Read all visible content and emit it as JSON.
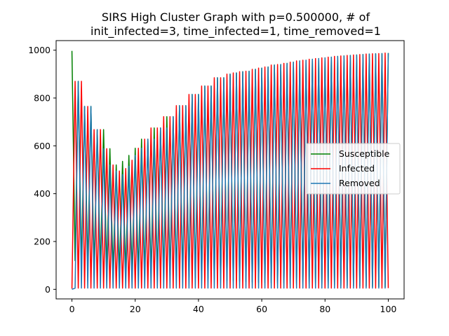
{
  "chart_data": {
    "type": "line",
    "title_line1": "SIRS High Cluster Graph with p=0.500000, # of",
    "title_line2": "init_infected=3, time_infected=1, time_removed=1",
    "xlabel": "",
    "ylabel": "",
    "xlim": [
      -5,
      105
    ],
    "ylim": [
      -40,
      1040
    ],
    "xticks": [
      0,
      20,
      40,
      60,
      80,
      100
    ],
    "yticks": [
      0,
      200,
      400,
      600,
      800,
      1000
    ],
    "grid": false,
    "legend_position": "center-right",
    "series": [
      {
        "name": "Susceptible",
        "color": "#008000",
        "peaks": [
          [
            0,
            997
          ],
          [
            2,
            870
          ],
          [
            4,
            765
          ],
          [
            6,
            765
          ],
          [
            8,
            668
          ],
          [
            10,
            668
          ],
          [
            12,
            588
          ],
          [
            14,
            520
          ],
          [
            16,
            535
          ],
          [
            18,
            560
          ],
          [
            20,
            590
          ],
          [
            22,
            628
          ],
          [
            24,
            628
          ],
          [
            26,
            675
          ],
          [
            28,
            675
          ],
          [
            30,
            722
          ],
          [
            32,
            722
          ],
          [
            34,
            768
          ],
          [
            36,
            768
          ],
          [
            38,
            815
          ],
          [
            40,
            815
          ],
          [
            42,
            850
          ],
          [
            44,
            850
          ],
          [
            46,
            885
          ],
          [
            48,
            885
          ],
          [
            50,
            900
          ],
          [
            52,
            905
          ],
          [
            54,
            910
          ],
          [
            56,
            912
          ],
          [
            58,
            920
          ],
          [
            60,
            925
          ],
          [
            62,
            930
          ],
          [
            64,
            938
          ],
          [
            66,
            940
          ],
          [
            68,
            945
          ],
          [
            70,
            950
          ],
          [
            72,
            955
          ],
          [
            74,
            958
          ],
          [
            76,
            962
          ],
          [
            78,
            965
          ],
          [
            80,
            968
          ],
          [
            82,
            971
          ],
          [
            84,
            974
          ],
          [
            86,
            976
          ],
          [
            88,
            978
          ],
          [
            90,
            980
          ],
          [
            92,
            982
          ],
          [
            94,
            984
          ],
          [
            96,
            985
          ],
          [
            98,
            986
          ],
          [
            100,
            988
          ]
        ],
        "troughs": [
          [
            1,
            120
          ],
          [
            3,
            95
          ],
          [
            5,
            90
          ],
          [
            7,
            85
          ],
          [
            9,
            80
          ],
          [
            11,
            78
          ],
          [
            13,
            75
          ],
          [
            15,
            72
          ],
          [
            17,
            70
          ],
          [
            19,
            68
          ],
          [
            21,
            66
          ],
          [
            23,
            64
          ],
          [
            25,
            62
          ],
          [
            27,
            60
          ],
          [
            29,
            58
          ],
          [
            31,
            56
          ],
          [
            33,
            54
          ],
          [
            35,
            52
          ],
          [
            37,
            50
          ],
          [
            39,
            48
          ],
          [
            41,
            46
          ],
          [
            43,
            44
          ],
          [
            45,
            42
          ],
          [
            47,
            40
          ],
          [
            49,
            38
          ],
          [
            51,
            36
          ],
          [
            53,
            34
          ],
          [
            55,
            32
          ],
          [
            57,
            30
          ],
          [
            59,
            29
          ],
          [
            61,
            28
          ],
          [
            63,
            27
          ],
          [
            65,
            26
          ],
          [
            67,
            25
          ],
          [
            69,
            24
          ],
          [
            71,
            23
          ],
          [
            73,
            22
          ],
          [
            75,
            21
          ],
          [
            77,
            20
          ],
          [
            79,
            19
          ],
          [
            81,
            18
          ],
          [
            83,
            17
          ],
          [
            85,
            16
          ],
          [
            87,
            15
          ],
          [
            89,
            14
          ],
          [
            91,
            13
          ],
          [
            93,
            12
          ],
          [
            95,
            11
          ],
          [
            97,
            10
          ],
          [
            99,
            9
          ]
        ]
      },
      {
        "name": "Infected",
        "color": "#ff0000",
        "peaks": [
          [
            1,
            870
          ],
          [
            3,
            870
          ],
          [
            5,
            765
          ],
          [
            7,
            668
          ],
          [
            9,
            668
          ],
          [
            11,
            588
          ],
          [
            13,
            520
          ],
          [
            15,
            495
          ],
          [
            17,
            505
          ],
          [
            19,
            540
          ],
          [
            21,
            590
          ],
          [
            23,
            628
          ],
          [
            25,
            675
          ],
          [
            27,
            675
          ],
          [
            29,
            722
          ],
          [
            31,
            722
          ],
          [
            33,
            768
          ],
          [
            35,
            768
          ],
          [
            37,
            815
          ],
          [
            39,
            815
          ],
          [
            41,
            850
          ],
          [
            43,
            850
          ],
          [
            45,
            885
          ],
          [
            47,
            885
          ],
          [
            49,
            900
          ],
          [
            51,
            905
          ],
          [
            53,
            910
          ],
          [
            55,
            912
          ],
          [
            57,
            920
          ],
          [
            59,
            925
          ],
          [
            61,
            930
          ],
          [
            63,
            938
          ],
          [
            65,
            940
          ],
          [
            67,
            945
          ],
          [
            69,
            950
          ],
          [
            71,
            955
          ],
          [
            73,
            958
          ],
          [
            75,
            962
          ],
          [
            77,
            965
          ],
          [
            79,
            968
          ],
          [
            81,
            971
          ],
          [
            83,
            974
          ],
          [
            85,
            976
          ],
          [
            87,
            978
          ],
          [
            89,
            980
          ],
          [
            91,
            982
          ],
          [
            93,
            984
          ],
          [
            95,
            985
          ],
          [
            97,
            986
          ],
          [
            99,
            988
          ]
        ],
        "troughs": [
          [
            0,
            3
          ],
          [
            2,
            5
          ],
          [
            4,
            5
          ],
          [
            6,
            5
          ],
          [
            8,
            5
          ],
          [
            10,
            5
          ],
          [
            12,
            5
          ],
          [
            14,
            5
          ],
          [
            16,
            5
          ],
          [
            18,
            5
          ],
          [
            20,
            5
          ],
          [
            22,
            5
          ],
          [
            24,
            5
          ],
          [
            26,
            5
          ],
          [
            28,
            5
          ],
          [
            30,
            5
          ],
          [
            32,
            5
          ],
          [
            34,
            5
          ],
          [
            36,
            5
          ],
          [
            38,
            5
          ],
          [
            40,
            5
          ],
          [
            42,
            5
          ],
          [
            44,
            5
          ],
          [
            46,
            5
          ],
          [
            48,
            5
          ],
          [
            50,
            5
          ],
          [
            52,
            5
          ],
          [
            54,
            5
          ],
          [
            56,
            5
          ],
          [
            58,
            5
          ],
          [
            60,
            5
          ],
          [
            62,
            5
          ],
          [
            64,
            5
          ],
          [
            66,
            5
          ],
          [
            68,
            5
          ],
          [
            70,
            5
          ],
          [
            72,
            5
          ],
          [
            74,
            5
          ],
          [
            76,
            5
          ],
          [
            78,
            5
          ],
          [
            80,
            5
          ],
          [
            82,
            5
          ],
          [
            84,
            5
          ],
          [
            86,
            5
          ],
          [
            88,
            5
          ],
          [
            90,
            5
          ],
          [
            92,
            5
          ],
          [
            94,
            5
          ],
          [
            96,
            5
          ],
          [
            98,
            5
          ],
          [
            100,
            5
          ]
        ]
      },
      {
        "name": "Removed",
        "color": "#1f77b4",
        "peaks": [
          [
            2,
            870
          ],
          [
            4,
            765
          ],
          [
            6,
            765
          ],
          [
            8,
            668
          ],
          [
            10,
            588
          ],
          [
            12,
            520
          ],
          [
            14,
            495
          ],
          [
            16,
            480
          ],
          [
            18,
            515
          ],
          [
            20,
            560
          ],
          [
            22,
            590
          ],
          [
            24,
            628
          ],
          [
            26,
            628
          ],
          [
            28,
            675
          ],
          [
            30,
            675
          ],
          [
            32,
            722
          ],
          [
            34,
            768
          ],
          [
            36,
            768
          ],
          [
            38,
            815
          ],
          [
            40,
            815
          ],
          [
            42,
            850
          ],
          [
            44,
            850
          ],
          [
            46,
            885
          ],
          [
            48,
            885
          ],
          [
            50,
            900
          ],
          [
            52,
            905
          ],
          [
            54,
            910
          ],
          [
            56,
            912
          ],
          [
            58,
            920
          ],
          [
            60,
            925
          ],
          [
            62,
            930
          ],
          [
            64,
            938
          ],
          [
            66,
            940
          ],
          [
            68,
            945
          ],
          [
            70,
            950
          ],
          [
            72,
            955
          ],
          [
            74,
            958
          ],
          [
            76,
            962
          ],
          [
            78,
            965
          ],
          [
            80,
            968
          ],
          [
            82,
            971
          ],
          [
            84,
            974
          ],
          [
            86,
            976
          ],
          [
            88,
            978
          ],
          [
            90,
            980
          ],
          [
            92,
            982
          ],
          [
            94,
            984
          ],
          [
            96,
            985
          ],
          [
            98,
            986
          ],
          [
            100,
            988
          ]
        ],
        "troughs": [
          [
            0,
            0
          ],
          [
            1,
            5
          ],
          [
            3,
            5
          ],
          [
            5,
            5
          ],
          [
            7,
            5
          ],
          [
            9,
            5
          ],
          [
            11,
            5
          ],
          [
            13,
            5
          ],
          [
            15,
            5
          ],
          [
            17,
            5
          ],
          [
            19,
            5
          ],
          [
            21,
            5
          ],
          [
            23,
            5
          ],
          [
            25,
            5
          ],
          [
            27,
            5
          ],
          [
            29,
            5
          ],
          [
            31,
            5
          ],
          [
            33,
            5
          ],
          [
            35,
            5
          ],
          [
            37,
            5
          ],
          [
            39,
            5
          ],
          [
            41,
            5
          ],
          [
            43,
            5
          ],
          [
            45,
            5
          ],
          [
            47,
            5
          ],
          [
            49,
            5
          ],
          [
            51,
            5
          ],
          [
            53,
            5
          ],
          [
            55,
            5
          ],
          [
            57,
            5
          ],
          [
            59,
            5
          ],
          [
            61,
            5
          ],
          [
            63,
            5
          ],
          [
            65,
            5
          ],
          [
            67,
            5
          ],
          [
            69,
            5
          ],
          [
            71,
            5
          ],
          [
            73,
            5
          ],
          [
            75,
            5
          ],
          [
            77,
            5
          ],
          [
            79,
            5
          ],
          [
            81,
            5
          ],
          [
            83,
            5
          ],
          [
            85,
            5
          ],
          [
            87,
            5
          ],
          [
            89,
            5
          ],
          [
            91,
            5
          ],
          [
            93,
            5
          ],
          [
            95,
            5
          ],
          [
            97,
            5
          ],
          [
            99,
            5
          ]
        ]
      }
    ]
  }
}
